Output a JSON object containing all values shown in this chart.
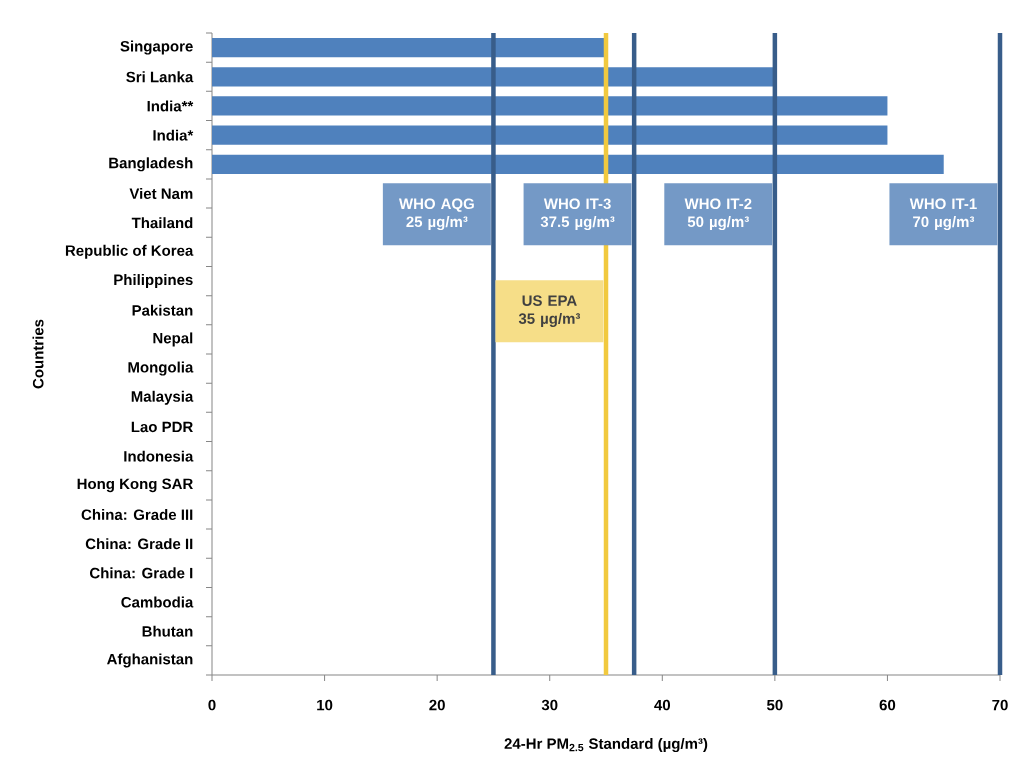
{
  "chart_data": {
    "type": "bar",
    "orientation": "horizontal",
    "color": "#4f81bd",
    "categories": [
      "Singapore",
      "Sri Lanka",
      "India**",
      "India*",
      "Bangladesh",
      "Viet Nam",
      "Thailand",
      "Republic of Korea",
      "Philippines",
      "Pakistan",
      "Nepal",
      "Mongolia",
      "Malaysia",
      "Lao PDR",
      "Indonesia",
      "Hong Kong SAR",
      "China: Grade III",
      "China: Grade II",
      "China: Grade I",
      "Cambodia",
      "Bhutan",
      "Afghanistan"
    ],
    "values": [
      35,
      50,
      60,
      60,
      65,
      null,
      null,
      null,
      null,
      null,
      null,
      null,
      null,
      null,
      null,
      null,
      null,
      null,
      null,
      null,
      null,
      null
    ],
    "xlim": [
      0,
      70
    ],
    "xticks": [
      0,
      10,
      20,
      30,
      40,
      50,
      60,
      70
    ],
    "xlabel": "24-Hr PM$_{2.5}$ Standard (µg/m³)",
    "ylabel": "Countries",
    "ref_lines": [
      {
        "axis": "x",
        "value": 25,
        "label": "WHO AQG 25 µg/m³",
        "color": "#385d8a"
      },
      {
        "axis": "x",
        "value": 37.5,
        "label": "WHO IT-3 37.5 µg/m³",
        "color": "#385d8a"
      },
      {
        "axis": "x",
        "value": 50,
        "label": "WHO IT-2 50 µg/m³",
        "color": "#385d8a"
      },
      {
        "axis": "x",
        "value": 70,
        "label": "WHO IT-1 70 µg/m³",
        "color": "#385d8a"
      },
      {
        "axis": "x",
        "value": 35,
        "label": "US EPA 35 µg/m³",
        "color": "#f1c93f"
      }
    ]
  }
}
